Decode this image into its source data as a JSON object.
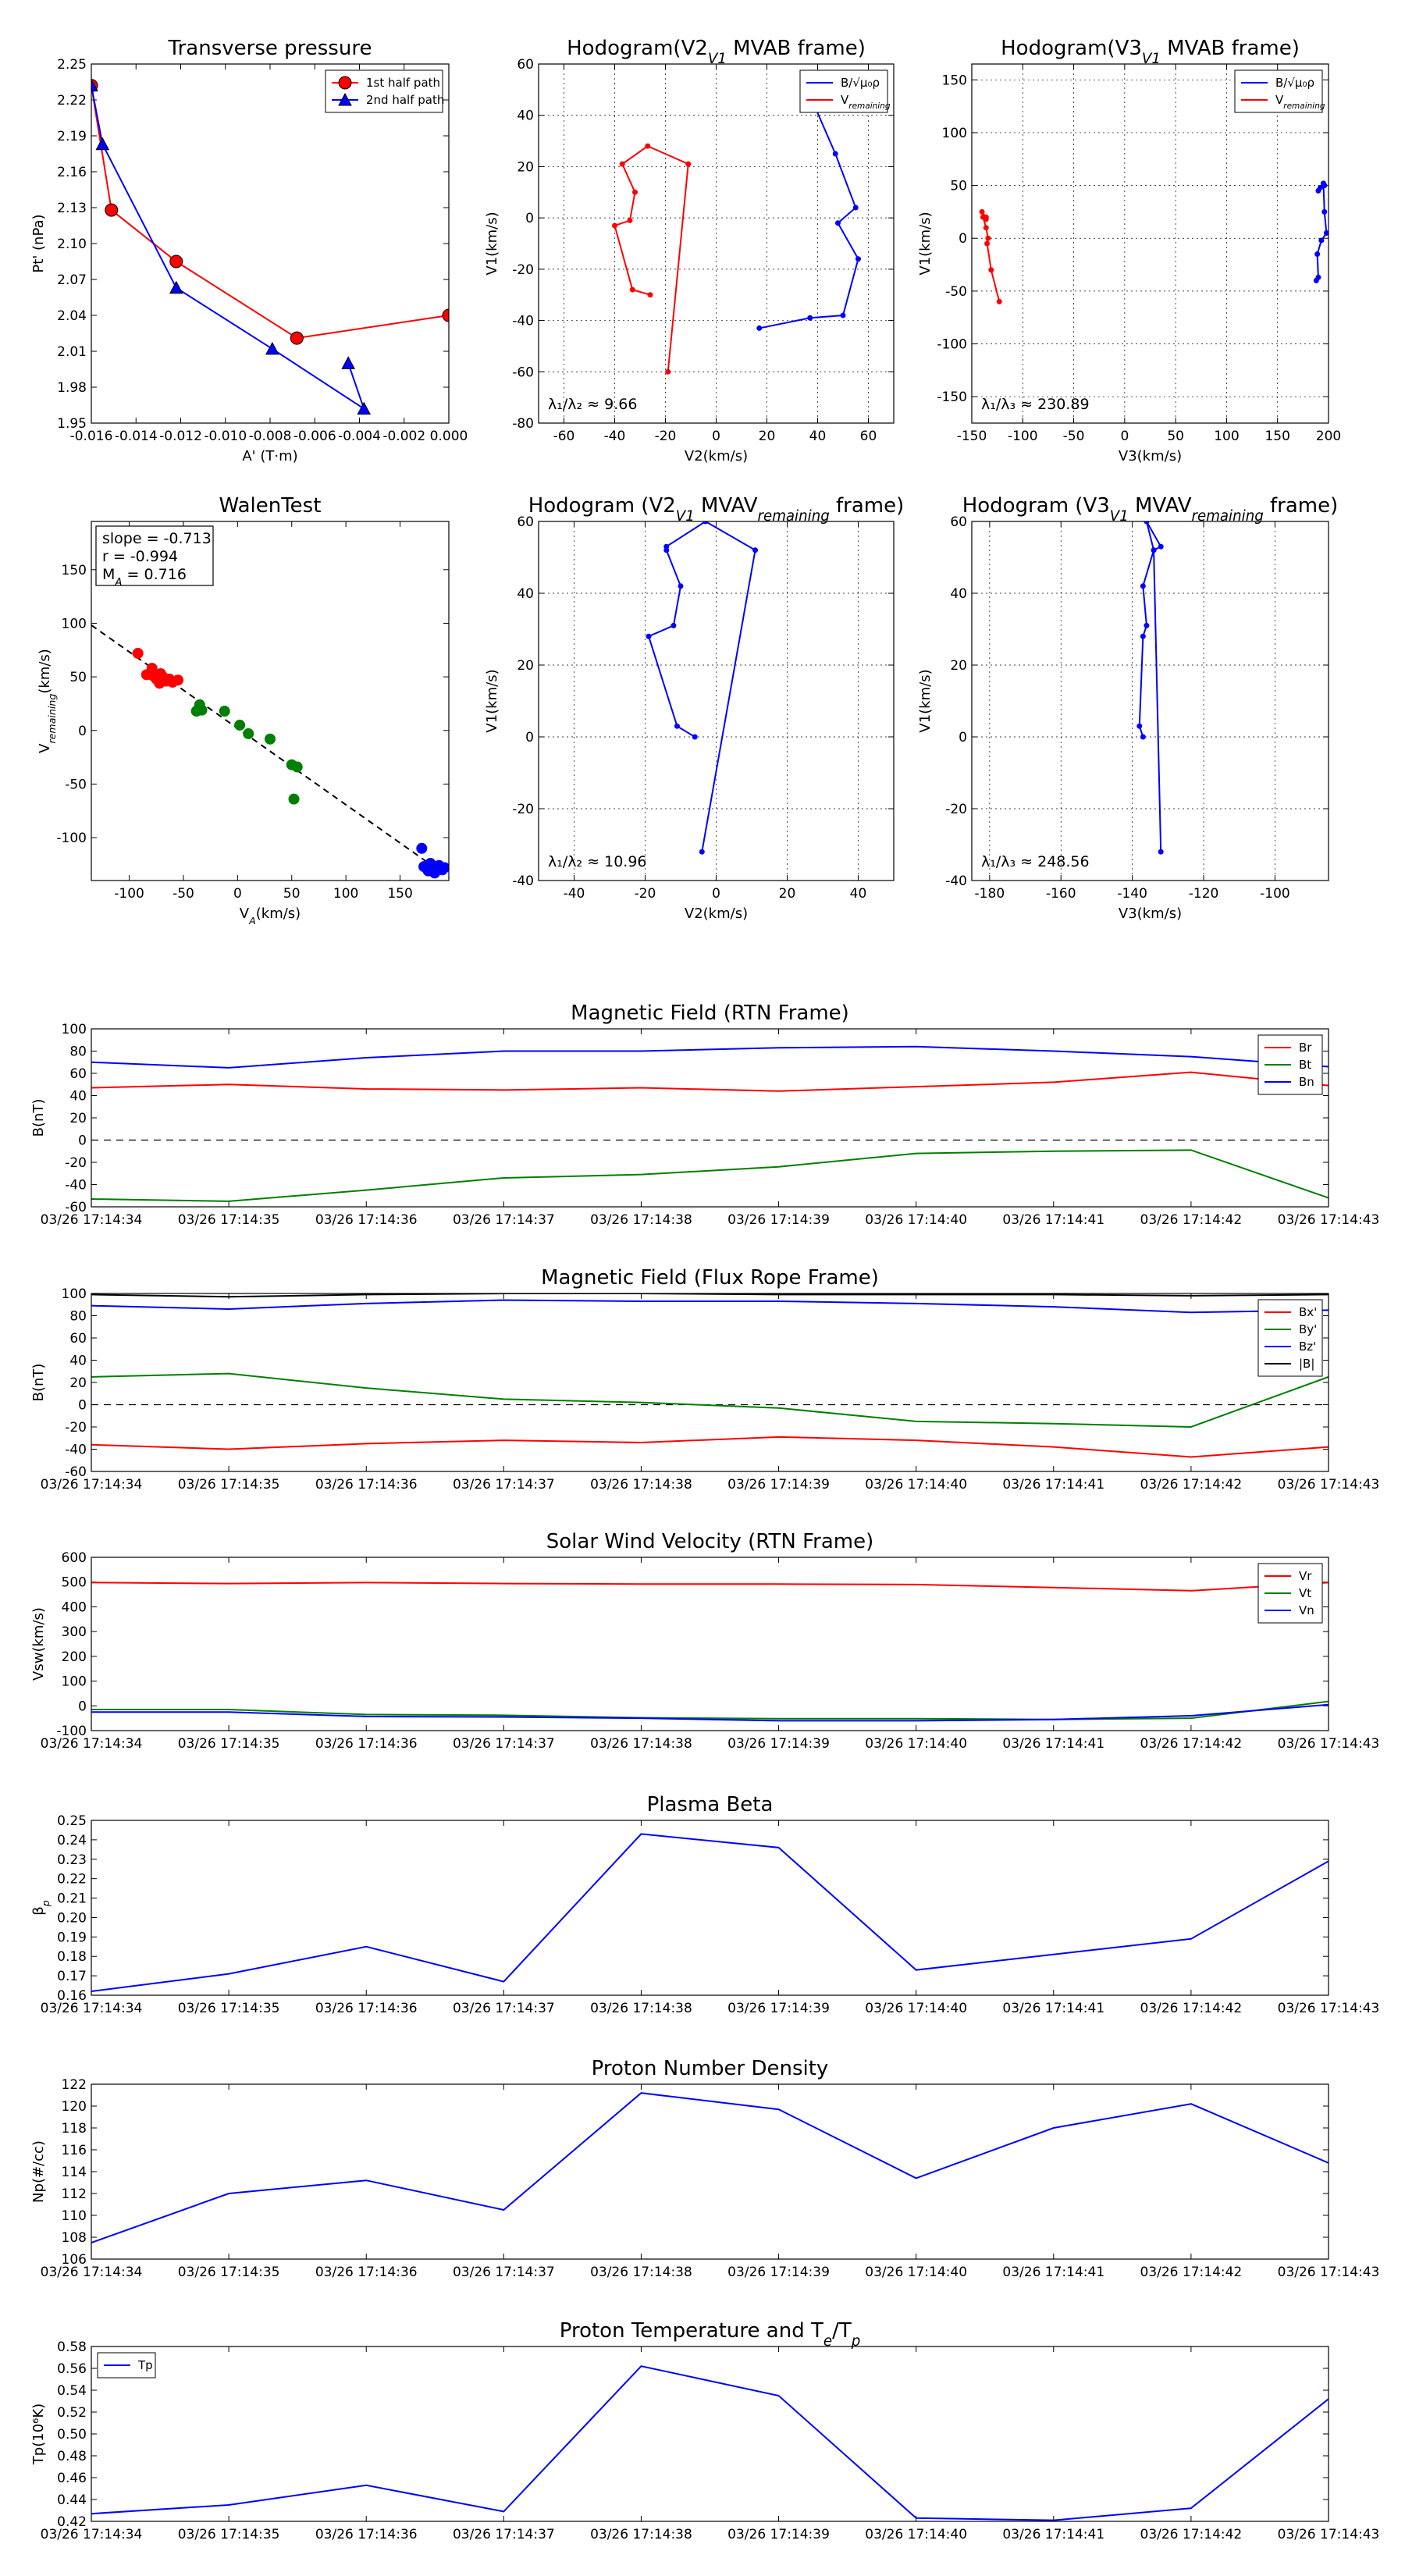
{
  "chart_data": [
    {
      "id": "tp",
      "type": "line",
      "title": "Transverse pressure",
      "xlabel": "A' (T·m)",
      "ylabel": "Pt' (nPa)",
      "xlim": [
        -0.016,
        0.0
      ],
      "ylim": [
        1.95,
        2.25
      ],
      "xticks": [
        -0.016,
        -0.014,
        -0.012,
        -0.01,
        -0.008,
        -0.006,
        -0.004,
        -0.002,
        0.0
      ],
      "xticklabels": [
        "-0.016",
        "-0.014",
        "-0.012",
        "-0.010",
        "-0.008",
        "-0.006",
        "-0.004",
        "-0.002",
        "0.000"
      ],
      "yticks": [
        1.95,
        1.98,
        2.01,
        2.04,
        2.07,
        2.1,
        2.13,
        2.16,
        2.19,
        2.22,
        2.25
      ],
      "yticklabels": [
        "1.95",
        "1.98",
        "2.01",
        "2.04",
        "2.07",
        "2.10",
        "2.13",
        "2.16",
        "2.19",
        "2.22",
        "2.25"
      ],
      "grid": false,
      "legend_loc": "upper right",
      "series": [
        {
          "name": "1st half path",
          "color": "#ff0000",
          "marker": "circle",
          "x": [
            -0.016,
            -0.0151,
            -0.0122,
            -0.0068,
            0.0
          ],
          "y": [
            2.232,
            2.128,
            2.085,
            2.021,
            2.04
          ]
        },
        {
          "name": "2nd half path",
          "color": "#0000ff",
          "marker": "triangle",
          "x": [
            -0.016,
            -0.0155,
            -0.0122,
            -0.0079,
            -0.0038,
            -0.0045
          ],
          "y": [
            2.232,
            2.183,
            2.063,
            2.012,
            1.962,
            2.0
          ]
        }
      ]
    },
    {
      "id": "h1",
      "type": "line",
      "title": "Hodogram(V2_V1 MVAB frame)",
      "xlabel": "V2(km/s)",
      "ylabel": "V1(km/s)",
      "xlim": [
        -70,
        70
      ],
      "ylim": [
        -80,
        60
      ],
      "xticks": [
        -60,
        -40,
        -20,
        0,
        20,
        40,
        60
      ],
      "yticks": [
        -80,
        -60,
        -40,
        -20,
        0,
        20,
        40,
        60
      ],
      "grid": true,
      "legend_loc": "upper right",
      "annotation": "λ₁/λ₂ ≈ 9.66",
      "series": [
        {
          "name": "B/√μ₀ρ",
          "color": "#0000ff",
          "x": [
            17,
            37,
            50,
            56,
            48,
            55,
            47,
            36
          ],
          "y": [
            -43,
            -39,
            -38,
            -16,
            -2,
            4,
            25,
            50
          ]
        },
        {
          "name": "V_remaining",
          "color": "#ff0000",
          "x": [
            -19,
            -11,
            -27,
            -37,
            -32,
            -34,
            -40,
            -33,
            -26
          ],
          "y": [
            -60,
            21,
            28,
            21,
            10,
            -1,
            -3,
            -28,
            -30
          ]
        }
      ]
    },
    {
      "id": "h2",
      "type": "line",
      "title": "Hodogram(V3_V1 MVAB frame)",
      "xlabel": "V3(km/s)",
      "ylabel": "V1(km/s)",
      "xlim": [
        -150,
        200
      ],
      "ylim": [
        -175,
        165
      ],
      "xticks": [
        -150,
        -100,
        -50,
        0,
        50,
        100,
        150,
        200
      ],
      "yticks": [
        -150,
        -100,
        -50,
        0,
        50,
        100,
        150
      ],
      "grid": true,
      "legend_loc": "upper right",
      "annotation": "λ₁/λ₃ ≈ 230.89",
      "series": [
        {
          "name": "B/√μ₀ρ",
          "color": "#0000ff",
          "x": [
            188,
            190,
            189,
            193,
            198,
            196,
            195,
            192,
            190,
            196
          ],
          "y": [
            -40,
            -37,
            -15,
            -2,
            5,
            25,
            52,
            48,
            45,
            50
          ]
        },
        {
          "name": "V_remaining",
          "color": "#ff0000",
          "x": [
            -123,
            -131,
            -135,
            -134,
            -136,
            -139,
            -136,
            -140,
            -136
          ],
          "y": [
            -60,
            -30,
            -5,
            0,
            10,
            20,
            18,
            25,
            20
          ]
        }
      ]
    },
    {
      "id": "walen",
      "type": "scatter",
      "title": "WalenTest",
      "xlabel": "V_A(km/s)",
      "ylabel": "V_remaining(km/s)",
      "xlim": [
        -135,
        195
      ],
      "ylim": [
        -140,
        195
      ],
      "xticks": [
        -100,
        -50,
        0,
        50,
        100,
        150
      ],
      "yticks": [
        -100,
        -50,
        0,
        50,
        100,
        150
      ],
      "grid": false,
      "annotation_lines": [
        "slope = -0.713",
        "r = -0.994",
        "M_A = 0.716"
      ],
      "fit_line": {
        "slope": -0.713,
        "intercept": 2
      },
      "series": [
        {
          "name": "red",
          "color": "#ff0000",
          "x": [
            -92,
            -84,
            -79,
            -75,
            -72,
            -69,
            -66,
            -63,
            -60,
            -55,
            -71,
            -78
          ],
          "y": [
            72,
            52,
            58,
            48,
            44,
            50,
            46,
            48,
            45,
            47,
            53,
            51
          ]
        },
        {
          "name": "green",
          "color": "#007f00",
          "x": [
            -38,
            -35,
            -33,
            -12,
            2,
            10,
            30,
            50,
            55,
            52,
            -36
          ],
          "y": [
            18,
            24,
            19,
            18,
            5,
            -3,
            -8,
            -32,
            -34,
            -64,
            20
          ]
        },
        {
          "name": "blue",
          "color": "#0000ff",
          "x": [
            170,
            172,
            178,
            182,
            186,
            189,
            191,
            176
          ],
          "y": [
            -110,
            -127,
            -124,
            -133,
            -126,
            -130,
            -128,
            -131
          ]
        }
      ]
    },
    {
      "id": "h3",
      "type": "line",
      "title": "Hodogram (V2_V1 MVAV_remaining frame)",
      "xlabel": "V2(km/s)",
      "ylabel": "V1(km/s)",
      "xlim": [
        -50,
        50
      ],
      "ylim": [
        -40,
        60
      ],
      "xticks": [
        -40,
        -20,
        0,
        20,
        40
      ],
      "yticks": [
        -40,
        -20,
        0,
        20,
        40,
        60
      ],
      "grid": true,
      "annotation": "λ₁/λ₂ ≈ 10.96",
      "series": [
        {
          "name": "B",
          "color": "#0000ff",
          "x": [
            -4,
            11,
            -3,
            -14,
            -14,
            -10,
            -12,
            -19,
            -11,
            -6
          ],
          "y": [
            -32,
            52,
            60,
            53,
            52,
            42,
            31,
            28,
            3,
            0
          ]
        }
      ]
    },
    {
      "id": "h4",
      "type": "line",
      "title": "Hodogram (V3_V1 MVAV_remaining frame)",
      "xlabel": "V3(km/s)",
      "ylabel": "V1(km/s)",
      "xlim": [
        -185,
        -85
      ],
      "ylim": [
        -40,
        60
      ],
      "xticks": [
        -180,
        -160,
        -140,
        -120,
        -100
      ],
      "yticks": [
        -40,
        -20,
        0,
        20,
        40,
        60
      ],
      "grid": true,
      "annotation": "λ₁/λ₃ ≈ 248.56",
      "series": [
        {
          "name": "B",
          "color": "#0000ff",
          "x": [
            -132,
            -134,
            -136,
            -132,
            -134,
            -137,
            -136,
            -137,
            -138,
            -137
          ],
          "y": [
            -32,
            52,
            60,
            53,
            52,
            42,
            31,
            28,
            3,
            0
          ]
        }
      ]
    },
    {
      "id": "mag_rtn",
      "type": "line",
      "title": "Magnetic Field (RTN Frame)",
      "xlabel": "",
      "ylabel": "B(nT)",
      "ylim": [
        -60,
        100
      ],
      "yticks": [
        -60,
        -40,
        -20,
        0,
        20,
        40,
        60,
        80,
        100
      ],
      "zero_line": true,
      "legend_loc": "upper right",
      "series": [
        {
          "name": "Br",
          "color": "#ff0000",
          "values": [
            47,
            50,
            46,
            45,
            47,
            44,
            48,
            52,
            61,
            49
          ]
        },
        {
          "name": "Bt",
          "color": "#007f00",
          "values": [
            -53,
            -55,
            -45,
            -34,
            -31,
            -24,
            -12,
            -10,
            -9,
            -52
          ]
        },
        {
          "name": "Bn",
          "color": "#0000ff",
          "values": [
            70,
            65,
            74,
            80,
            80,
            83,
            84,
            80,
            75,
            66
          ]
        }
      ]
    },
    {
      "id": "mag_fr",
      "type": "line",
      "title": "Magnetic Field (Flux Rope Frame)",
      "xlabel": "",
      "ylabel": "B(nT)",
      "ylim": [
        -60,
        100
      ],
      "yticks": [
        -60,
        -40,
        -20,
        0,
        20,
        40,
        60,
        80,
        100
      ],
      "zero_line": true,
      "legend_loc": "upper right",
      "series": [
        {
          "name": "Bx'",
          "color": "#ff0000",
          "values": [
            -36,
            -40,
            -35,
            -32,
            -34,
            -29,
            -32,
            -38,
            -47,
            -38
          ]
        },
        {
          "name": "By'",
          "color": "#007f00",
          "values": [
            25,
            28,
            15,
            5,
            2,
            -3,
            -15,
            -17,
            -20,
            25
          ]
        },
        {
          "name": "Bz'",
          "color": "#0000ff",
          "values": [
            89,
            86,
            91,
            94,
            93,
            93,
            91,
            88,
            83,
            85
          ]
        },
        {
          "name": "|B|",
          "color": "#000000",
          "values": [
            99,
            97,
            99,
            100,
            100,
            99,
            99,
            99,
            98,
            99
          ]
        }
      ]
    },
    {
      "id": "sw",
      "type": "line",
      "title": "Solar Wind Velocity (RTN Frame)",
      "xlabel": "",
      "ylabel": "Vsw(km/s)",
      "ylim": [
        -100,
        600
      ],
      "yticks": [
        -100,
        0,
        100,
        200,
        300,
        400,
        500,
        600
      ],
      "legend_loc": "upper right",
      "series": [
        {
          "name": "Vr",
          "color": "#ff0000",
          "values": [
            498,
            494,
            498,
            494,
            492,
            492,
            490,
            478,
            465,
            498
          ]
        },
        {
          "name": "Vt",
          "color": "#007f00",
          "values": [
            -15,
            -15,
            -35,
            -38,
            -48,
            -52,
            -52,
            -55,
            -50,
            18
          ]
        },
        {
          "name": "Vn",
          "color": "#0000ff",
          "values": [
            -25,
            -25,
            -43,
            -45,
            -50,
            -60,
            -60,
            -55,
            -40,
            5
          ]
        }
      ]
    },
    {
      "id": "beta",
      "type": "line",
      "title": "Plasma Beta",
      "xlabel": "",
      "ylabel": "β_p",
      "ylim": [
        0.16,
        0.25
      ],
      "yticks": [
        0.16,
        0.17,
        0.18,
        0.19,
        0.2,
        0.21,
        0.22,
        0.23,
        0.24,
        0.25
      ],
      "yticklabels": [
        "0.16",
        "0.17",
        "0.18",
        "0.19",
        "0.20",
        "0.21",
        "0.22",
        "0.23",
        "0.24",
        "0.25"
      ],
      "series": [
        {
          "name": "beta",
          "color": "#0000ff",
          "values": [
            0.162,
            0.171,
            0.185,
            0.167,
            0.243,
            0.236,
            0.173,
            0.181,
            0.189,
            0.229
          ]
        }
      ]
    },
    {
      "id": "np",
      "type": "line",
      "title": "Proton Number Density",
      "xlabel": "",
      "ylabel": "Np(#/cc)",
      "ylim": [
        106,
        122
      ],
      "yticks": [
        106,
        108,
        110,
        112,
        114,
        116,
        118,
        120,
        122
      ],
      "series": [
        {
          "name": "Np",
          "color": "#0000ff",
          "values": [
            107.5,
            112,
            113.2,
            110.5,
            121.2,
            119.7,
            113.4,
            118,
            120.2,
            114.8
          ]
        }
      ]
    },
    {
      "id": "tpr",
      "type": "line",
      "title": "Proton Temperature and T_e/T_p",
      "xlabel": "",
      "ylabel": "Tp(10⁶K)",
      "ylim": [
        0.42,
        0.58
      ],
      "yticks": [
        0.42,
        0.44,
        0.46,
        0.48,
        0.5,
        0.52,
        0.54,
        0.56,
        0.58
      ],
      "yticklabels": [
        "0.42",
        "0.44",
        "0.46",
        "0.48",
        "0.50",
        "0.52",
        "0.54",
        "0.56",
        "0.58"
      ],
      "legend_loc": "upper left",
      "series": [
        {
          "name": "Tp",
          "color": "#0000ff",
          "values": [
            0.427,
            0.435,
            0.453,
            0.429,
            0.562,
            0.535,
            0.423,
            0.421,
            0.432,
            0.532
          ]
        }
      ]
    }
  ],
  "time_ticks": [
    "03/26 17:14:34",
    "03/26 17:14:35",
    "03/26 17:14:36",
    "03/26 17:14:37",
    "03/26 17:14:38",
    "03/26 17:14:39",
    "03/26 17:14:40",
    "03/26 17:14:41",
    "03/26 17:14:42",
    "03/26 17:14:43"
  ]
}
